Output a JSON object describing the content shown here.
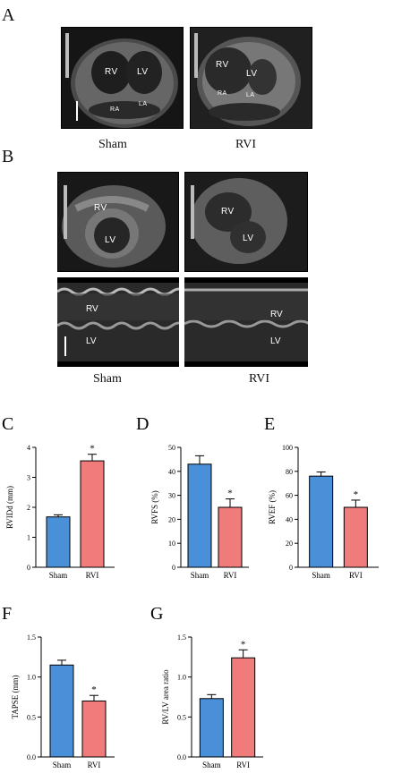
{
  "panels": {
    "A": {
      "label": "A",
      "left_caption": "Sham",
      "right_caption": "RVI",
      "left_labels": {
        "rv": "RV",
        "lv": "LV",
        "ra": "RA",
        "la": "LA"
      },
      "right_labels": {
        "rv": "RV",
        "lv": "LV",
        "ra": "RA",
        "la": "LA"
      }
    },
    "B": {
      "label": "B",
      "left_caption": "Sham",
      "right_caption": "RVI",
      "left_labels": {
        "rv": "RV",
        "lv": "LV"
      },
      "right_labels": {
        "rv": "RV",
        "lv": "LV"
      },
      "left_m_labels": {
        "rv": "RV",
        "lv": "LV"
      },
      "right_m_labels": {
        "rv": "RV",
        "lv": "LV"
      }
    }
  },
  "chart_data": [
    {
      "panel": "C",
      "type": "bar",
      "categories": [
        "Sham",
        "RVI"
      ],
      "values": [
        1.68,
        3.55
      ],
      "errors": [
        0.07,
        0.22
      ],
      "ylabel": "RVIDd (mm)",
      "ylim": [
        0,
        4
      ],
      "yticks": [
        "0",
        "1",
        "2",
        "3",
        "4"
      ],
      "significance": [
        "",
        "*"
      ],
      "colors": [
        "#4a90d9",
        "#f07b7b"
      ]
    },
    {
      "panel": "D",
      "type": "bar",
      "categories": [
        "Sham",
        "RVI"
      ],
      "values": [
        43,
        25
      ],
      "errors": [
        3.5,
        3.5
      ],
      "ylabel": "RVFS (%)",
      "ylim": [
        0,
        50
      ],
      "yticks": [
        "0",
        "10",
        "20",
        "30",
        "40",
        "50"
      ],
      "significance": [
        "",
        "*"
      ],
      "colors": [
        "#4a90d9",
        "#f07b7b"
      ]
    },
    {
      "panel": "E",
      "type": "bar",
      "categories": [
        "Sham",
        "RVI"
      ],
      "values": [
        76,
        50
      ],
      "errors": [
        3.5,
        6
      ],
      "ylabel": "RVEF (%)",
      "ylim": [
        0,
        100
      ],
      "yticks": [
        "0",
        "20",
        "40",
        "60",
        "80",
        "100"
      ],
      "significance": [
        "",
        "*"
      ],
      "colors": [
        "#4a90d9",
        "#f07b7b"
      ]
    },
    {
      "panel": "F",
      "type": "bar",
      "categories": [
        "Sham",
        "RVI"
      ],
      "values": [
        1.15,
        0.7
      ],
      "errors": [
        0.06,
        0.07
      ],
      "ylabel": "TAPSE (mm)",
      "ylim": [
        0,
        1.5
      ],
      "yticks": [
        "0.0",
        "0.5",
        "1.0",
        "1.5"
      ],
      "significance": [
        "",
        "*"
      ],
      "colors": [
        "#4a90d9",
        "#f07b7b"
      ]
    },
    {
      "panel": "G",
      "type": "bar",
      "categories": [
        "Sham",
        "RVI"
      ],
      "values": [
        0.73,
        1.24
      ],
      "errors": [
        0.05,
        0.1
      ],
      "ylabel": "RV/LV area ratio",
      "ylim": [
        0,
        1.5
      ],
      "yticks": [
        "0.0",
        "0.5",
        "1.0",
        "1.5"
      ],
      "significance": [
        "",
        "*"
      ],
      "colors": [
        "#4a90d9",
        "#f07b7b"
      ]
    }
  ]
}
